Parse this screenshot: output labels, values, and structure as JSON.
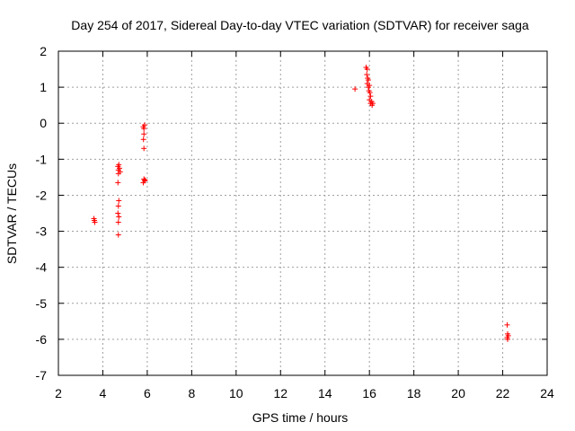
{
  "chart_data": {
    "type": "scatter",
    "title": "Day 254 of 2017, Sidereal Day-to-day VTEC variation (SDTVAR) for receiver saga",
    "xlabel": "GPS time / hours",
    "ylabel": "SDTVAR / TECUs",
    "xlim": [
      2,
      24
    ],
    "ylim": [
      -7,
      2
    ],
    "xticks": [
      "2",
      "4",
      "6",
      "8",
      "10",
      "12",
      "14",
      "16",
      "18",
      "20",
      "22",
      "24"
    ],
    "yticks": [
      "2",
      "1",
      "0",
      "-1",
      "-2",
      "-3",
      "-4",
      "-5",
      "-6",
      "-7"
    ],
    "grid": true,
    "marker": "+",
    "color": "#ff0000",
    "series": [
      {
        "points": [
          [
            3.6,
            -2.65
          ],
          [
            3.62,
            -2.7
          ],
          [
            3.64,
            -2.75
          ],
          [
            4.68,
            -1.2
          ],
          [
            4.7,
            -1.3
          ],
          [
            4.72,
            -1.15
          ],
          [
            4.7,
            -1.4
          ],
          [
            4.68,
            -1.65
          ],
          [
            4.72,
            -2.15
          ],
          [
            4.7,
            -2.3
          ],
          [
            4.68,
            -2.5
          ],
          [
            4.72,
            -2.6
          ],
          [
            4.7,
            -2.75
          ],
          [
            4.7,
            -3.1
          ],
          [
            4.75,
            -1.25
          ],
          [
            4.78,
            -1.35
          ],
          [
            5.82,
            -0.1
          ],
          [
            5.85,
            -0.15
          ],
          [
            5.88,
            -0.05
          ],
          [
            5.85,
            -0.3
          ],
          [
            5.83,
            -0.45
          ],
          [
            5.85,
            -0.7
          ],
          [
            5.85,
            -1.55
          ],
          [
            5.88,
            -1.6
          ],
          [
            5.82,
            -1.65
          ],
          [
            5.9,
            -1.58
          ],
          [
            15.35,
            0.95
          ],
          [
            15.85,
            1.55
          ],
          [
            15.9,
            1.5
          ],
          [
            15.88,
            1.35
          ],
          [
            15.92,
            1.25
          ],
          [
            15.95,
            1.2
          ],
          [
            15.9,
            1.1
          ],
          [
            15.95,
            1.0
          ],
          [
            16.0,
            1.05
          ],
          [
            15.98,
            0.9
          ],
          [
            16.02,
            0.85
          ],
          [
            16.05,
            0.75
          ],
          [
            16.0,
            0.65
          ],
          [
            16.1,
            0.6
          ],
          [
            16.05,
            0.55
          ],
          [
            16.12,
            0.5
          ],
          [
            16.15,
            0.55
          ],
          [
            22.2,
            -5.6
          ],
          [
            22.22,
            -5.85
          ],
          [
            22.2,
            -5.95
          ],
          [
            22.25,
            -5.9
          ],
          [
            22.22,
            -6.0
          ]
        ]
      }
    ]
  }
}
